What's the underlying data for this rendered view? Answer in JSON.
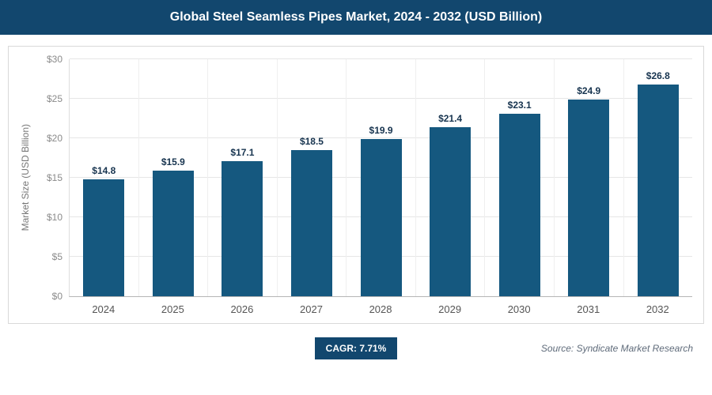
{
  "header": {
    "title": "Global Steel Seamless Pipes Market, 2024 - 2032 (USD Billion)"
  },
  "colors": {
    "header_bg": "#12476E",
    "bar": "#15587F",
    "badge_bg": "#12476E"
  },
  "chart_data": {
    "type": "bar",
    "title": "Global Steel Seamless Pipes Market, 2024 - 2032 (USD Billion)",
    "categories": [
      "2024",
      "2025",
      "2026",
      "2027",
      "2028",
      "2029",
      "2030",
      "2031",
      "2032"
    ],
    "values": [
      14.8,
      15.9,
      17.1,
      18.5,
      19.9,
      21.4,
      23.1,
      24.9,
      26.8
    ],
    "value_labels": [
      "$14.8",
      "$15.9",
      "$17.1",
      "$18.5",
      "$19.9",
      "$21.4",
      "$23.1",
      "$24.9",
      "$26.8"
    ],
    "xlabel": "",
    "ylabel": "Market Size (USD Billion)",
    "ylim": [
      0,
      30
    ],
    "ytick_step": 5,
    "ytick_labels": [
      "$0",
      "$5",
      "$10",
      "$15",
      "$20",
      "$25",
      "$30"
    ],
    "grid": true,
    "legend": "none",
    "bar_color": "#15587F"
  },
  "footer": {
    "cagr_label": "CAGR: 7.71%",
    "source": "Source: Syndicate Market Research"
  }
}
